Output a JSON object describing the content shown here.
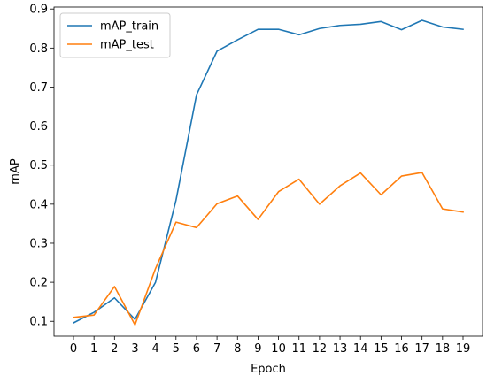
{
  "chart_data": {
    "type": "line",
    "title": "",
    "xlabel": "Epoch",
    "ylabel": "mAP",
    "x": [
      0,
      1,
      2,
      3,
      4,
      5,
      6,
      7,
      8,
      9,
      10,
      11,
      12,
      13,
      14,
      15,
      16,
      17,
      18,
      19
    ],
    "xlim": [
      -0.95,
      19.95
    ],
    "ylim": [
      0.062,
      0.905
    ],
    "xticks": [
      0,
      1,
      2,
      3,
      4,
      5,
      6,
      7,
      8,
      9,
      10,
      11,
      12,
      13,
      14,
      15,
      16,
      17,
      18,
      19
    ],
    "yticks": [
      0.1,
      0.2,
      0.3,
      0.4,
      0.5,
      0.6,
      0.7,
      0.8,
      0.9
    ],
    "ytick_labels": [
      "0.1",
      "0.2",
      "0.3",
      "0.4",
      "0.5",
      "0.6",
      "0.7",
      "0.8",
      "0.9"
    ],
    "grid": false,
    "legend_position": "top-left",
    "series": [
      {
        "name": "mAP_train",
        "color": "#1f77b4",
        "values": [
          0.096,
          0.123,
          0.16,
          0.105,
          0.2,
          0.41,
          0.68,
          0.792,
          0.821,
          0.848,
          0.848,
          0.834,
          0.85,
          0.858,
          0.861,
          0.868,
          0.847,
          0.871,
          0.854,
          0.848
        ]
      },
      {
        "name": "mAP_test",
        "color": "#ff7f0e",
        "values": [
          0.11,
          0.116,
          0.189,
          0.091,
          0.235,
          0.354,
          0.34,
          0.401,
          0.421,
          0.361,
          0.432,
          0.464,
          0.4,
          0.447,
          0.48,
          0.424,
          0.472,
          0.481,
          0.388,
          0.38
        ]
      }
    ]
  }
}
